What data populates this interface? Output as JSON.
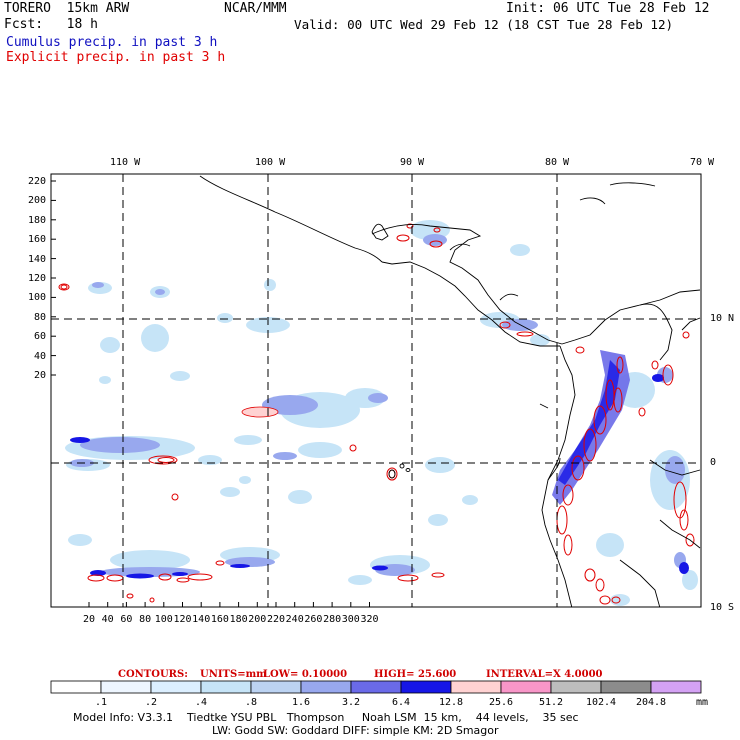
{
  "header": {
    "model": "TORERO  15km ARW",
    "org": "NCAR/MMM",
    "init": "Init: 06 UTC Tue 28 Feb 12",
    "fcst": "Fcst:   18 h",
    "valid": "Valid: 00 UTC Wed 29 Feb 12 (18 CST Tue 28 Feb 12)",
    "field1": "Cumulus precip. in past 3 h",
    "field2": "Explicit precip. in past 3 h"
  },
  "map": {
    "top_labels": [
      "110 W",
      "100 W",
      "90 W",
      "80 W",
      "70 W"
    ],
    "right_labels": [
      "10 N",
      "0",
      "10 S"
    ],
    "y_ticks": [
      "220",
      "200",
      "180",
      "160",
      "140",
      "120",
      "100",
      "80",
      "60",
      "40",
      "20"
    ],
    "x_ticks": [
      "20",
      "40",
      "60",
      "80",
      "100",
      "120",
      "140",
      "160",
      "180",
      "200",
      "220",
      "240",
      "260",
      "280",
      "300",
      "320"
    ]
  },
  "contours": {
    "title": "CONTOURS:",
    "units": "UNITS=mm",
    "low": "LOW= 0.10000",
    "high": "HIGH=  25.600",
    "interval": "INTERVAL=X  4.0000"
  },
  "colorbar": {
    "labels": [
      ".1",
      ".2",
      ".4",
      ".8",
      "1.6",
      "3.2",
      "6.4",
      "12.8",
      "25.6",
      "51.2",
      "102.4",
      "204.8"
    ],
    "unit": "mm",
    "colors": [
      "#ffffff",
      "#eef6ff",
      "#dcefff",
      "#c6e4f7",
      "#bcd3f2",
      "#98a8ee",
      "#6a6ae8",
      "#1616e6",
      "#ffd2d2",
      "#f896c8",
      "#bdbdbd",
      "#8c8c8c",
      "#d4a2f4"
    ]
  },
  "footer": {
    "line1": "Model Info: V3.3.1    Tiedtke YSU PBL   Thompson     Noah LSM  15 km,    44 levels,    35 sec",
    "line2": "LW: Godd SW: Goddard DIFF: simple KM: 2D Smagor"
  }
}
